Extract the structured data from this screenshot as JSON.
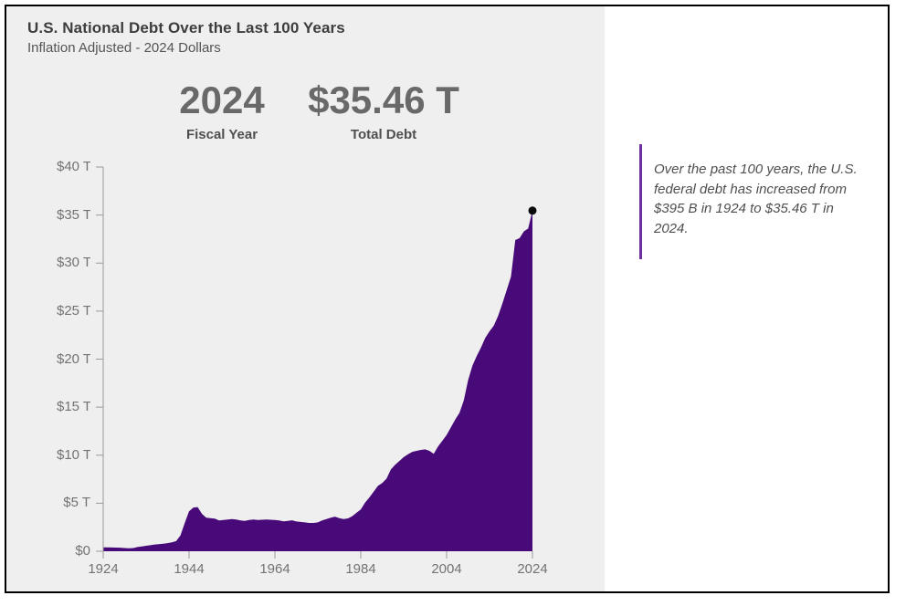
{
  "header": {
    "title": "U.S. National Debt Over the Last 100 Years",
    "subtitle": "Inflation Adjusted - 2024 Dollars"
  },
  "stats": {
    "fiscal_year_value": "2024",
    "fiscal_year_label": "Fiscal Year",
    "total_debt_value": "$35.46 T",
    "total_debt_label": "Total Debt"
  },
  "annotation": {
    "text": "Over the past 100 years, the U.S.\nfederal debt has increased from\n$395 B in 1924 to $35.46 T in\n2024.",
    "bar_color": "#7030a0"
  },
  "colors": {
    "panel_bg": "#efefef",
    "area_purple": "#470a78",
    "marker_black": "#0a0a0a",
    "axis_gray": "#999999",
    "tick_label_gray": "#737373"
  },
  "chart_data": {
    "type": "area",
    "title": "U.S. National Debt Over the Last 100 Years",
    "subtitle": "Inflation Adjusted - 2024 Dollars",
    "unit": "trillions of 2024 dollars",
    "xlabel": "Fiscal Year",
    "ylabel": "Total Debt",
    "xlim": [
      1924,
      2024
    ],
    "ylim": [
      0,
      40
    ],
    "grid": false,
    "legend": "none",
    "x_ticks": [
      1924,
      1944,
      1964,
      1984,
      2004,
      2024
    ],
    "y_tick_labels": [
      "$0",
      "$5 T",
      "$10 T",
      "$15 T",
      "$20 T",
      "$25 T",
      "$30 T",
      "$35 T",
      "$40 T"
    ],
    "y_tick_values": [
      0,
      5,
      10,
      15,
      20,
      25,
      30,
      35,
      40
    ],
    "marker": {
      "year": 2024,
      "value": 35.46
    },
    "series": [
      {
        "name": "Total Debt (trillions, 2024 dollars)",
        "points": [
          [
            1924,
            0.4
          ],
          [
            1925,
            0.4
          ],
          [
            1926,
            0.39
          ],
          [
            1927,
            0.38
          ],
          [
            1928,
            0.37
          ],
          [
            1929,
            0.33
          ],
          [
            1930,
            0.3
          ],
          [
            1931,
            0.33
          ],
          [
            1932,
            0.44
          ],
          [
            1933,
            0.5
          ],
          [
            1934,
            0.57
          ],
          [
            1935,
            0.63
          ],
          [
            1936,
            0.7
          ],
          [
            1937,
            0.74
          ],
          [
            1938,
            0.79
          ],
          [
            1939,
            0.85
          ],
          [
            1940,
            0.92
          ],
          [
            1941,
            1.05
          ],
          [
            1942,
            1.65
          ],
          [
            1943,
            2.95
          ],
          [
            1944,
            4.15
          ],
          [
            1945,
            4.55
          ],
          [
            1946,
            4.6
          ],
          [
            1947,
            3.9
          ],
          [
            1948,
            3.5
          ],
          [
            1949,
            3.45
          ],
          [
            1950,
            3.4
          ],
          [
            1951,
            3.2
          ],
          [
            1952,
            3.25
          ],
          [
            1953,
            3.3
          ],
          [
            1954,
            3.35
          ],
          [
            1955,
            3.3
          ],
          [
            1956,
            3.2
          ],
          [
            1957,
            3.15
          ],
          [
            1958,
            3.25
          ],
          [
            1959,
            3.3
          ],
          [
            1960,
            3.25
          ],
          [
            1961,
            3.28
          ],
          [
            1962,
            3.3
          ],
          [
            1963,
            3.28
          ],
          [
            1964,
            3.25
          ],
          [
            1965,
            3.2
          ],
          [
            1966,
            3.12
          ],
          [
            1967,
            3.15
          ],
          [
            1968,
            3.22
          ],
          [
            1969,
            3.1
          ],
          [
            1970,
            3.05
          ],
          [
            1971,
            3.0
          ],
          [
            1972,
            2.95
          ],
          [
            1973,
            2.95
          ],
          [
            1974,
            3.0
          ],
          [
            1975,
            3.2
          ],
          [
            1976,
            3.35
          ],
          [
            1977,
            3.5
          ],
          [
            1978,
            3.6
          ],
          [
            1979,
            3.45
          ],
          [
            1980,
            3.35
          ],
          [
            1981,
            3.42
          ],
          [
            1982,
            3.65
          ],
          [
            1983,
            4.0
          ],
          [
            1984,
            4.35
          ],
          [
            1985,
            5.05
          ],
          [
            1986,
            5.6
          ],
          [
            1987,
            6.2
          ],
          [
            1988,
            6.8
          ],
          [
            1989,
            7.1
          ],
          [
            1990,
            7.55
          ],
          [
            1991,
            8.5
          ],
          [
            1992,
            9.0
          ],
          [
            1993,
            9.4
          ],
          [
            1994,
            9.8
          ],
          [
            1995,
            10.1
          ],
          [
            1996,
            10.35
          ],
          [
            1997,
            10.45
          ],
          [
            1998,
            10.55
          ],
          [
            1999,
            10.6
          ],
          [
            2000,
            10.45
          ],
          [
            2001,
            10.15
          ],
          [
            2002,
            10.9
          ],
          [
            2003,
            11.5
          ],
          [
            2004,
            12.1
          ],
          [
            2005,
            12.9
          ],
          [
            2006,
            13.7
          ],
          [
            2007,
            14.4
          ],
          [
            2008,
            15.7
          ],
          [
            2009,
            17.8
          ],
          [
            2010,
            19.3
          ],
          [
            2011,
            20.3
          ],
          [
            2012,
            21.2
          ],
          [
            2013,
            22.2
          ],
          [
            2014,
            22.9
          ],
          [
            2015,
            23.5
          ],
          [
            2016,
            24.5
          ],
          [
            2017,
            25.8
          ],
          [
            2018,
            27.2
          ],
          [
            2019,
            28.6
          ],
          [
            2020,
            32.4
          ],
          [
            2021,
            32.6
          ],
          [
            2022,
            33.3
          ],
          [
            2023,
            33.6
          ],
          [
            2024,
            35.46
          ]
        ]
      }
    ]
  }
}
